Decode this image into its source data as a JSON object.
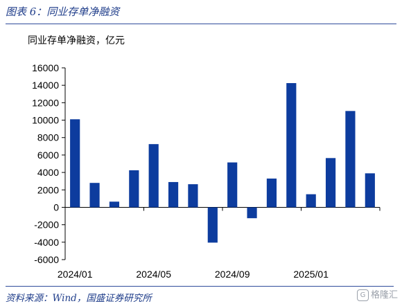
{
  "header": {
    "figure_title": "图表 6：同业存单净融资"
  },
  "footer": {
    "source": "资料来源：Wind，国盛证券研究所",
    "watermark": "格隆汇"
  },
  "colors": {
    "bar": "#0d3c9e",
    "axis": "#000000",
    "title": "#1f3d8a"
  },
  "chart_data": {
    "type": "bar",
    "title": "同业存单净融资，亿元",
    "xlabel": "",
    "ylabel": "",
    "ylim": [
      -6000,
      16000
    ],
    "yticks": [
      -6000,
      -4000,
      -2000,
      0,
      2000,
      4000,
      6000,
      8000,
      10000,
      12000,
      14000,
      16000
    ],
    "ytick_labels": [
      "-6000",
      "-4000",
      "-2000",
      "0",
      "2000",
      "4000",
      "6000",
      "8000",
      "10000",
      "12000",
      "14000",
      "16000"
    ],
    "categories": [
      "2024/01",
      "2024/02",
      "2024/03",
      "2024/04",
      "2024/05",
      "2024/06",
      "2024/07",
      "2024/08",
      "2024/09",
      "2024/10",
      "2024/11",
      "2024/12",
      "2025/01",
      "2025/02",
      "2025/03",
      "2025/04"
    ],
    "values": [
      10100,
      2800,
      650,
      4250,
      7250,
      2900,
      2650,
      -4050,
      5150,
      -1250,
      3300,
      14250,
      1500,
      5650,
      11050,
      3900
    ],
    "xtick_labels": [
      "2024/01",
      "2024/05",
      "2024/09",
      "2025/01"
    ],
    "xtick_indices": [
      0,
      4,
      8,
      12
    ],
    "grid": false,
    "legend": "none"
  }
}
